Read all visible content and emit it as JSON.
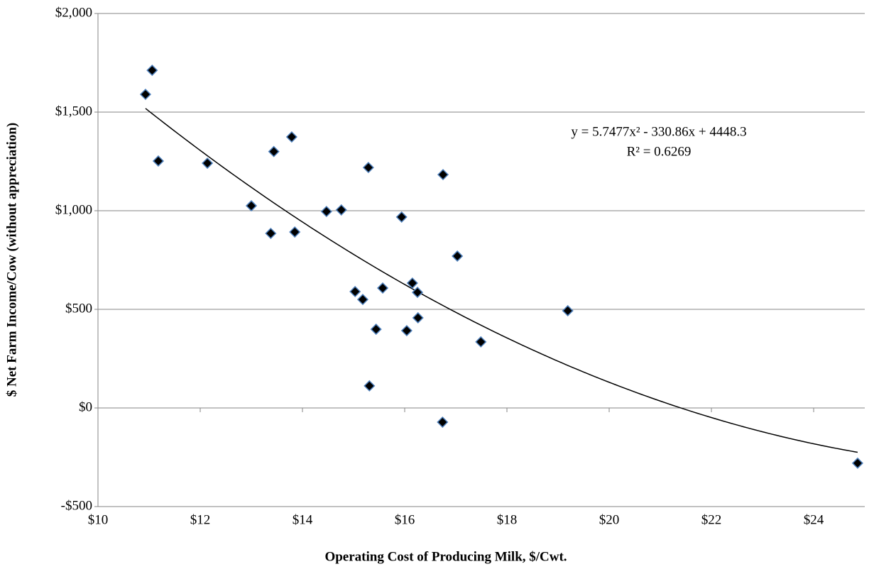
{
  "chart_data": {
    "type": "scatter",
    "x_label": "Operating Cost of Producing Milk, $/Cwt.",
    "y_label": "$ Net Farm Income/Cow (without appreciation)",
    "x": [
      10.93,
      11.06,
      11.18,
      12.14,
      13.0,
      13.38,
      13.44,
      13.79,
      13.85,
      14.47,
      14.76,
      15.03,
      15.18,
      15.29,
      15.31,
      15.44,
      15.57,
      15.94,
      16.04,
      16.15,
      16.25,
      16.26,
      16.75,
      16.74,
      17.03,
      17.49,
      19.19,
      24.86
    ],
    "values": [
      1590,
      1712,
      1252,
      1241,
      1025,
      885,
      1300,
      1374,
      892,
      996,
      1004,
      590,
      550,
      1219,
      112,
      399,
      608,
      968,
      392,
      633,
      586,
      457,
      1183,
      -72,
      770,
      335,
      493,
      -280
    ],
    "color": "#000000",
    "edge_color": "#4f81bd",
    "xlim": [
      10,
      25
    ],
    "xticks": [
      {
        "value": 10,
        "label": "$10"
      },
      {
        "value": 12,
        "label": "$12"
      },
      {
        "value": 14,
        "label": "$14"
      },
      {
        "value": 16,
        "label": "$16"
      },
      {
        "value": 18,
        "label": "$18"
      },
      {
        "value": 20,
        "label": "$20"
      },
      {
        "value": 22,
        "label": "$22"
      },
      {
        "value": 24,
        "label": "$24"
      }
    ],
    "ylim": [
      -500,
      2000
    ],
    "yticks": [
      {
        "value": -500,
        "label": "-$500"
      },
      {
        "value": 0,
        "label": "$0"
      },
      {
        "value": 500,
        "label": "$500"
      },
      {
        "value": 1000,
        "label": "$1,000"
      },
      {
        "value": 1500,
        "label": "$1,500"
      },
      {
        "value": 2000,
        "label": "$2,000"
      }
    ],
    "grid": true,
    "trendline": {
      "equation": "y = 5.7477x² - 330.86x + 4448.3",
      "r_squared": "R² = 0.6269",
      "coefficients": [
        5.7477,
        -330.86,
        4448.3
      ]
    }
  }
}
